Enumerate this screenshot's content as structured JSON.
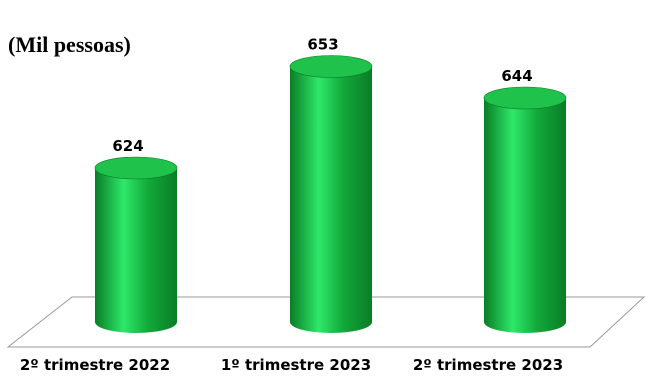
{
  "chart_data": {
    "type": "bar",
    "style": "3d-cylinder",
    "unit_label": "(Mil pessoas)",
    "categories": [
      "2º trimestre 2022",
      "1º trimestre 2023",
      "2º trimestre 2023"
    ],
    "values": [
      624,
      653,
      644
    ],
    "value_labels": [
      "624",
      "653",
      "644"
    ],
    "ylim": [
      580,
      660
    ],
    "grid": false,
    "legend": "none",
    "colors": {
      "bar_main": "#12a83a",
      "bar_light": "#2ee86a",
      "bar_dark": "#0a7d26",
      "bar_top": "#1fc24a",
      "floor_line": "#9a9a9a"
    }
  }
}
